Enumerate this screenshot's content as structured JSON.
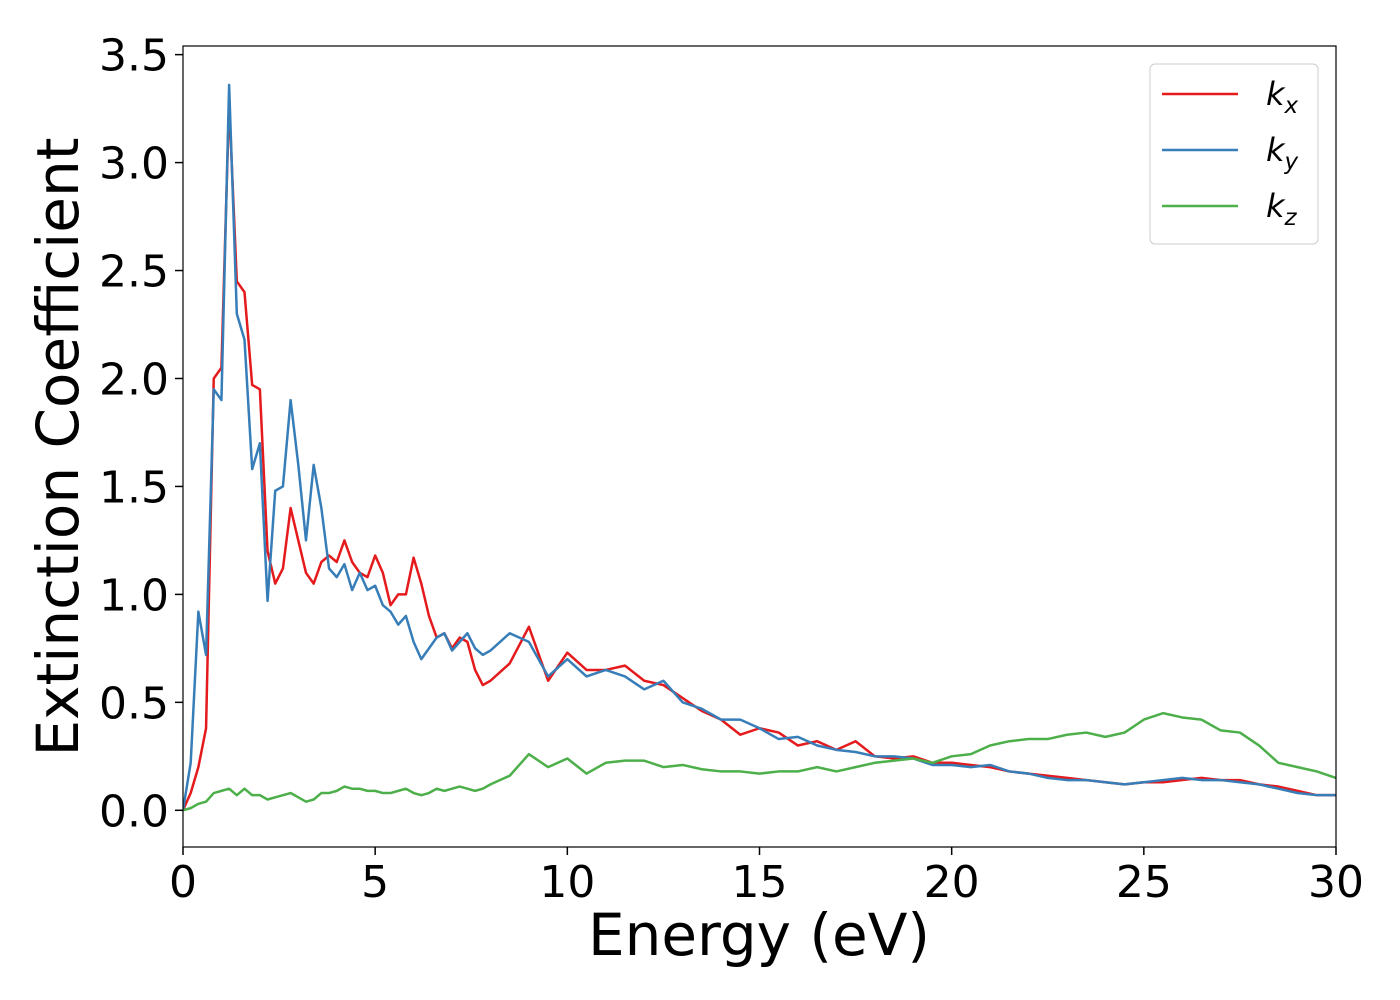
{
  "chart_data": {
    "type": "line",
    "xlabel": "Energy (eV)",
    "ylabel": "Extinction Coefficient",
    "xlim": [
      0,
      30
    ],
    "ylim": [
      -0.17,
      3.54
    ],
    "xticks": [
      0,
      5,
      10,
      15,
      20,
      25,
      30
    ],
    "yticks": [
      {
        "value": 0,
        "label": "0.0"
      },
      0.5,
      {
        "value": 1,
        "label": "1.0"
      },
      1.5,
      {
        "value": 2,
        "label": "2.0"
      },
      2.5,
      {
        "value": 3,
        "label": "3.0"
      },
      3.5
    ],
    "legend": "upper right",
    "grid": false,
    "x": [
      0,
      0.2,
      0.4,
      0.6,
      0.8,
      1.0,
      1.2,
      1.4,
      1.6,
      1.8,
      2.0,
      2.2,
      2.4,
      2.6,
      2.8,
      3.0,
      3.2,
      3.4,
      3.6,
      3.8,
      4.0,
      4.2,
      4.4,
      4.6,
      4.8,
      5.0,
      5.2,
      5.4,
      5.6,
      5.8,
      6.0,
      6.2,
      6.4,
      6.6,
      6.8,
      7.0,
      7.2,
      7.4,
      7.6,
      7.8,
      8.0,
      8.5,
      9,
      9.5,
      10,
      10.5,
      11,
      11.5,
      12,
      12.5,
      13,
      13.5,
      14,
      14.5,
      15,
      15.5,
      16,
      16.5,
      17,
      17.5,
      18,
      18.5,
      19,
      19.5,
      20,
      20.5,
      21,
      21.5,
      22,
      22.5,
      23,
      23.5,
      24,
      24.5,
      25,
      25.5,
      26,
      26.5,
      27,
      27.5,
      28,
      28.5,
      29,
      29.5,
      30
    ],
    "series": [
      {
        "name": "kx",
        "color": "#e41a1c",
        "values": [
          0,
          0.08,
          0.2,
          0.38,
          2.0,
          2.05,
          3.28,
          2.45,
          2.4,
          1.97,
          1.95,
          1.2,
          1.05,
          1.12,
          1.4,
          1.25,
          1.1,
          1.05,
          1.15,
          1.18,
          1.15,
          1.25,
          1.15,
          1.1,
          1.08,
          1.18,
          1.1,
          0.95,
          1.0,
          1.0,
          1.17,
          1.05,
          0.9,
          0.8,
          0.82,
          0.75,
          0.8,
          0.78,
          0.65,
          0.58,
          0.6,
          0.68,
          0.85,
          0.6,
          0.73,
          0.65,
          0.65,
          0.67,
          0.6,
          0.58,
          0.52,
          0.46,
          0.42,
          0.35,
          0.38,
          0.36,
          0.3,
          0.32,
          0.28,
          0.32,
          0.25,
          0.24,
          0.25,
          0.22,
          0.22,
          0.21,
          0.2,
          0.18,
          0.17,
          0.16,
          0.15,
          0.14,
          0.13,
          0.12,
          0.13,
          0.13,
          0.14,
          0.15,
          0.14,
          0.14,
          0.12,
          0.11,
          0.09,
          0.07,
          0.07
        ]
      },
      {
        "name": "ky",
        "color": "#377eb8",
        "values": [
          0,
          0.22,
          0.92,
          0.72,
          1.95,
          1.9,
          3.36,
          2.3,
          2.18,
          1.58,
          1.7,
          0.97,
          1.48,
          1.5,
          1.9,
          1.6,
          1.25,
          1.6,
          1.4,
          1.12,
          1.08,
          1.14,
          1.02,
          1.1,
          1.02,
          1.04,
          0.95,
          0.92,
          0.86,
          0.9,
          0.78,
          0.7,
          0.75,
          0.8,
          0.82,
          0.74,
          0.78,
          0.82,
          0.75,
          0.72,
          0.74,
          0.82,
          0.78,
          0.62,
          0.7,
          0.62,
          0.65,
          0.62,
          0.56,
          0.6,
          0.5,
          0.47,
          0.42,
          0.42,
          0.38,
          0.33,
          0.34,
          0.3,
          0.28,
          0.27,
          0.25,
          0.25,
          0.24,
          0.21,
          0.21,
          0.2,
          0.21,
          0.18,
          0.17,
          0.15,
          0.14,
          0.14,
          0.13,
          0.12,
          0.13,
          0.14,
          0.15,
          0.14,
          0.14,
          0.13,
          0.12,
          0.1,
          0.08,
          0.07,
          0.07
        ]
      },
      {
        "name": "kz",
        "color": "#4daf4a",
        "values": [
          0,
          0.01,
          0.03,
          0.04,
          0.08,
          0.09,
          0.1,
          0.07,
          0.1,
          0.07,
          0.07,
          0.05,
          0.06,
          0.07,
          0.08,
          0.06,
          0.04,
          0.05,
          0.08,
          0.08,
          0.09,
          0.11,
          0.1,
          0.1,
          0.09,
          0.09,
          0.08,
          0.08,
          0.09,
          0.1,
          0.08,
          0.07,
          0.08,
          0.1,
          0.09,
          0.1,
          0.11,
          0.1,
          0.09,
          0.1,
          0.12,
          0.16,
          0.26,
          0.2,
          0.24,
          0.17,
          0.22,
          0.23,
          0.23,
          0.2,
          0.21,
          0.19,
          0.18,
          0.18,
          0.17,
          0.18,
          0.18,
          0.2,
          0.18,
          0.2,
          0.22,
          0.23,
          0.24,
          0.22,
          0.25,
          0.26,
          0.3,
          0.32,
          0.33,
          0.33,
          0.35,
          0.36,
          0.34,
          0.36,
          0.42,
          0.45,
          0.43,
          0.42,
          0.37,
          0.36,
          0.3,
          0.22,
          0.2,
          0.18,
          0.15
        ]
      }
    ]
  }
}
